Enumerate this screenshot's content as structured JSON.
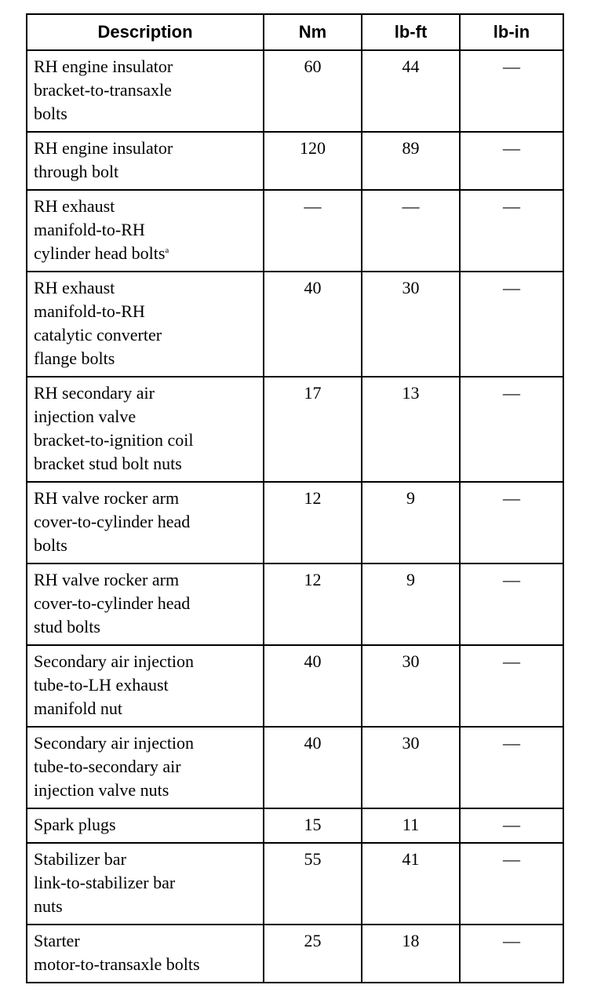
{
  "table": {
    "headers": [
      "Description",
      "Nm",
      "lb-ft",
      "lb-in"
    ],
    "rows": [
      {
        "lines": [
          "RH engine insulator",
          "bracket-to-transaxle",
          "bolts"
        ],
        "footnote": "",
        "nm": "60",
        "lbft": "44",
        "lbin": "—"
      },
      {
        "lines": [
          "RH engine insulator",
          "through bolt"
        ],
        "footnote": "",
        "nm": "120",
        "lbft": "89",
        "lbin": "—"
      },
      {
        "lines": [
          "RH exhaust",
          "manifold-to-RH",
          "cylinder head bolts"
        ],
        "footnote": "a",
        "nm": "—",
        "lbft": "—",
        "lbin": "—"
      },
      {
        "lines": [
          "RH exhaust",
          "manifold-to-RH",
          "catalytic converter",
          "flange bolts"
        ],
        "footnote": "",
        "nm": "40",
        "lbft": "30",
        "lbin": "—"
      },
      {
        "lines": [
          "RH secondary air",
          "injection valve",
          "bracket-to-ignition coil",
          "bracket stud bolt nuts"
        ],
        "footnote": "",
        "nm": "17",
        "lbft": "13",
        "lbin": "—"
      },
      {
        "lines": [
          "RH valve rocker arm",
          "cover-to-cylinder head",
          "bolts"
        ],
        "footnote": "",
        "nm": "12",
        "lbft": "9",
        "lbin": "—"
      },
      {
        "lines": [
          "RH valve rocker arm",
          "cover-to-cylinder head",
          "stud bolts"
        ],
        "footnote": "",
        "nm": "12",
        "lbft": "9",
        "lbin": "—"
      },
      {
        "lines": [
          "Secondary air injection",
          "tube-to-LH exhaust",
          "manifold nut"
        ],
        "footnote": "",
        "nm": "40",
        "lbft": "30",
        "lbin": "—"
      },
      {
        "lines": [
          "Secondary air injection",
          "tube-to-secondary air",
          "injection valve nuts"
        ],
        "footnote": "",
        "nm": "40",
        "lbft": "30",
        "lbin": "—"
      },
      {
        "lines": [
          "Spark plugs"
        ],
        "footnote": "",
        "nm": "15",
        "lbft": "11",
        "lbin": "—"
      },
      {
        "lines": [
          "Stabilizer bar",
          "link-to-stabilizer bar",
          "nuts"
        ],
        "footnote": "",
        "nm": "55",
        "lbft": "41",
        "lbin": "—"
      },
      {
        "lines": [
          "Starter",
          "motor-to-transaxle bolts"
        ],
        "footnote": "",
        "nm": "25",
        "lbft": "18",
        "lbin": "—"
      }
    ]
  }
}
